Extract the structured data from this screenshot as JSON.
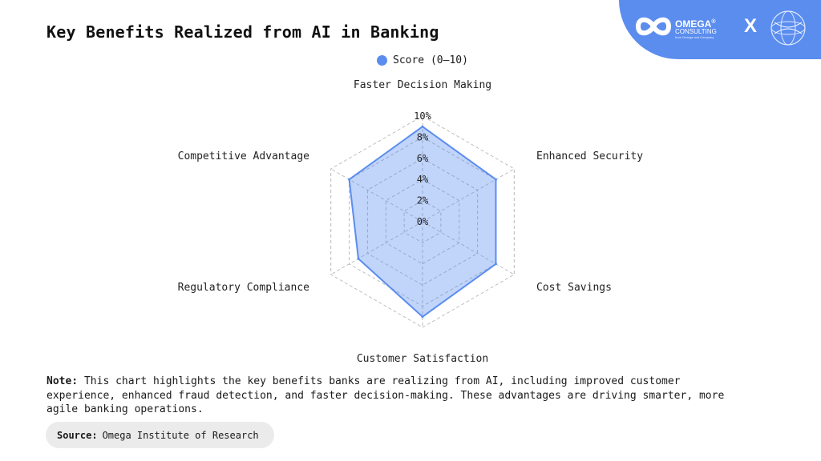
{
  "title": "Key Benefits Realized from AI in Banking",
  "brand": {
    "name": "OMEGA",
    "registered": "®",
    "sub": "CONSULTING",
    "tagline": "from Omega and Company",
    "separator": "X"
  },
  "colors": {
    "accent": "#5b8def",
    "fill": "rgba(91,141,239,0.38)"
  },
  "chart_data": {
    "type": "radar",
    "axes": [
      "Faster Decision Making",
      "Enhanced Security",
      "Cost Savings",
      "Customer Satisfaction",
      "Regulatory Compliance",
      "Competitive Advantage"
    ],
    "series": [
      {
        "name": "Score (0–10)",
        "values": [
          9,
          8,
          8,
          9,
          7,
          8
        ]
      }
    ],
    "rlim": [
      0,
      10
    ],
    "ticks": [
      0,
      2,
      4,
      6,
      8,
      10
    ],
    "tick_labels": [
      "0%",
      "2%",
      "4%",
      "6%",
      "8%",
      "10%"
    ],
    "legend_position": "top-center",
    "grid": true
  },
  "note": {
    "label": "Note:",
    "text": "This chart highlights the key benefits banks are realizing from AI, including improved customer experience, enhanced fraud detection, and faster decision-making. These advantages are driving smarter, more agile banking operations."
  },
  "source": {
    "label": "Source:",
    "text": "Omega Institute of Research"
  }
}
